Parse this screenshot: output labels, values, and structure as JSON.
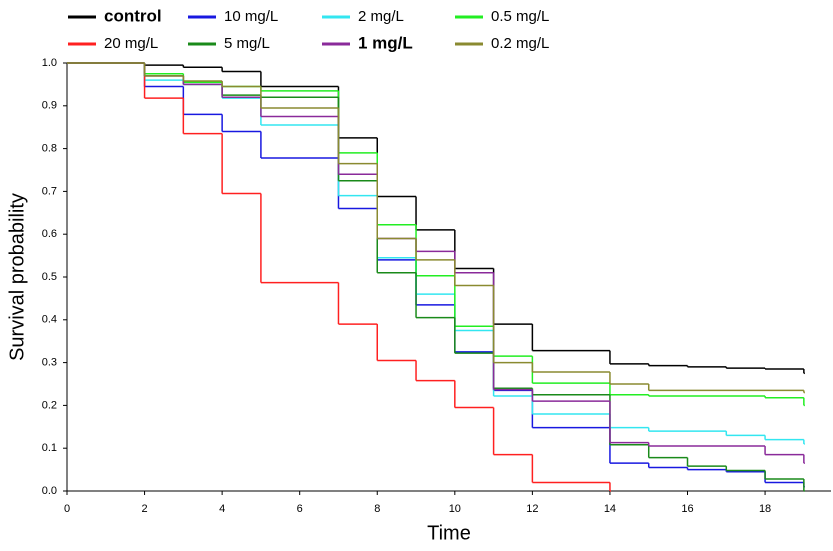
{
  "chart_data": {
    "type": "step",
    "xlabel": "Time",
    "ylabel": "Survival probability",
    "xlim": [
      0,
      19.7
    ],
    "xticks": [
      0,
      2,
      4,
      6,
      8,
      10,
      12,
      14,
      16,
      18
    ],
    "ylim": [
      0,
      1
    ],
    "yticks": [
      {
        "value": 0,
        "label": "0.0"
      },
      0.1,
      0.2,
      0.3,
      0.4,
      0.5,
      0.6,
      0.7,
      0.8,
      0.9,
      {
        "value": 1,
        "label": "1.0"
      }
    ],
    "grid": false,
    "series": [
      {
        "name": "control",
        "color": "#000000",
        "x": [
          0,
          2,
          3,
          4,
          5,
          7,
          8,
          9,
          10,
          11,
          12,
          14,
          15,
          16,
          17,
          18,
          19
        ],
        "values": [
          1,
          0.995,
          0.99,
          0.98,
          0.945,
          0.825,
          0.688,
          0.61,
          0.52,
          0.39,
          0.328,
          0.297,
          0.293,
          0.29,
          0.287,
          0.285,
          0.275
        ]
      },
      {
        "name": "10 mg/L",
        "color": "#1818e0",
        "x": [
          0,
          2,
          3,
          4,
          5,
          7,
          8,
          9,
          10,
          11,
          12,
          14,
          15,
          16,
          17,
          18,
          19
        ],
        "values": [
          1,
          0.945,
          0.88,
          0.84,
          0.778,
          0.66,
          0.54,
          0.435,
          0.325,
          0.235,
          0.148,
          0.065,
          0.055,
          0.05,
          0.045,
          0.02,
          0.01
        ]
      },
      {
        "name": "2 mg/L",
        "color": "#33e6f0",
        "x": [
          0,
          2,
          3,
          4,
          5,
          7,
          8,
          9,
          10,
          11,
          12,
          14,
          15,
          17,
          18,
          19
        ],
        "values": [
          1,
          0.96,
          0.95,
          0.918,
          0.855,
          0.69,
          0.545,
          0.46,
          0.375,
          0.222,
          0.18,
          0.148,
          0.14,
          0.13,
          0.12,
          0.11
        ]
      },
      {
        "name": "0.5 mg/L",
        "color": "#22ee22",
        "x": [
          0,
          2,
          3,
          4,
          5,
          7,
          8,
          9,
          10,
          11,
          12,
          14,
          15,
          18,
          19
        ],
        "values": [
          1,
          0.975,
          0.955,
          0.945,
          0.935,
          0.79,
          0.622,
          0.503,
          0.385,
          0.315,
          0.252,
          0.225,
          0.222,
          0.218,
          0.2
        ]
      },
      {
        "name": "20 mg/L",
        "color": "#ff2020",
        "x": [
          0,
          2,
          3,
          4,
          5,
          7,
          8,
          9,
          10,
          11,
          12,
          14
        ],
        "values": [
          1,
          0.918,
          0.835,
          0.695,
          0.487,
          0.39,
          0.305,
          0.258,
          0.195,
          0.085,
          0.02,
          0
        ]
      },
      {
        "name": "5 mg/L",
        "color": "#1a8a1a",
        "x": [
          0,
          2,
          3,
          4,
          5,
          7,
          8,
          9,
          10,
          11,
          12,
          14,
          15,
          16,
          17,
          18,
          19
        ],
        "values": [
          1,
          0.97,
          0.95,
          0.925,
          0.92,
          0.725,
          0.51,
          0.405,
          0.322,
          0.24,
          0.225,
          0.108,
          0.078,
          0.058,
          0.048,
          0.028,
          0
        ]
      },
      {
        "name": "1 mg/L",
        "color": "#8a2a9a",
        "x": [
          0,
          2,
          3,
          4,
          5,
          7,
          8,
          9,
          10,
          11,
          12,
          14,
          15,
          18,
          19
        ],
        "values": [
          1,
          0.97,
          0.95,
          0.92,
          0.875,
          0.74,
          0.59,
          0.56,
          0.51,
          0.237,
          0.21,
          0.113,
          0.105,
          0.085,
          0.065
        ]
      },
      {
        "name": "0.2 mg/L",
        "color": "#8a8a30",
        "x": [
          0,
          2,
          3,
          4,
          5,
          7,
          8,
          9,
          10,
          11,
          12,
          14,
          15,
          19
        ],
        "values": [
          1,
          0.97,
          0.958,
          0.945,
          0.895,
          0.765,
          0.59,
          0.54,
          0.48,
          0.3,
          0.278,
          0.25,
          0.235,
          0.23
        ]
      }
    ]
  }
}
